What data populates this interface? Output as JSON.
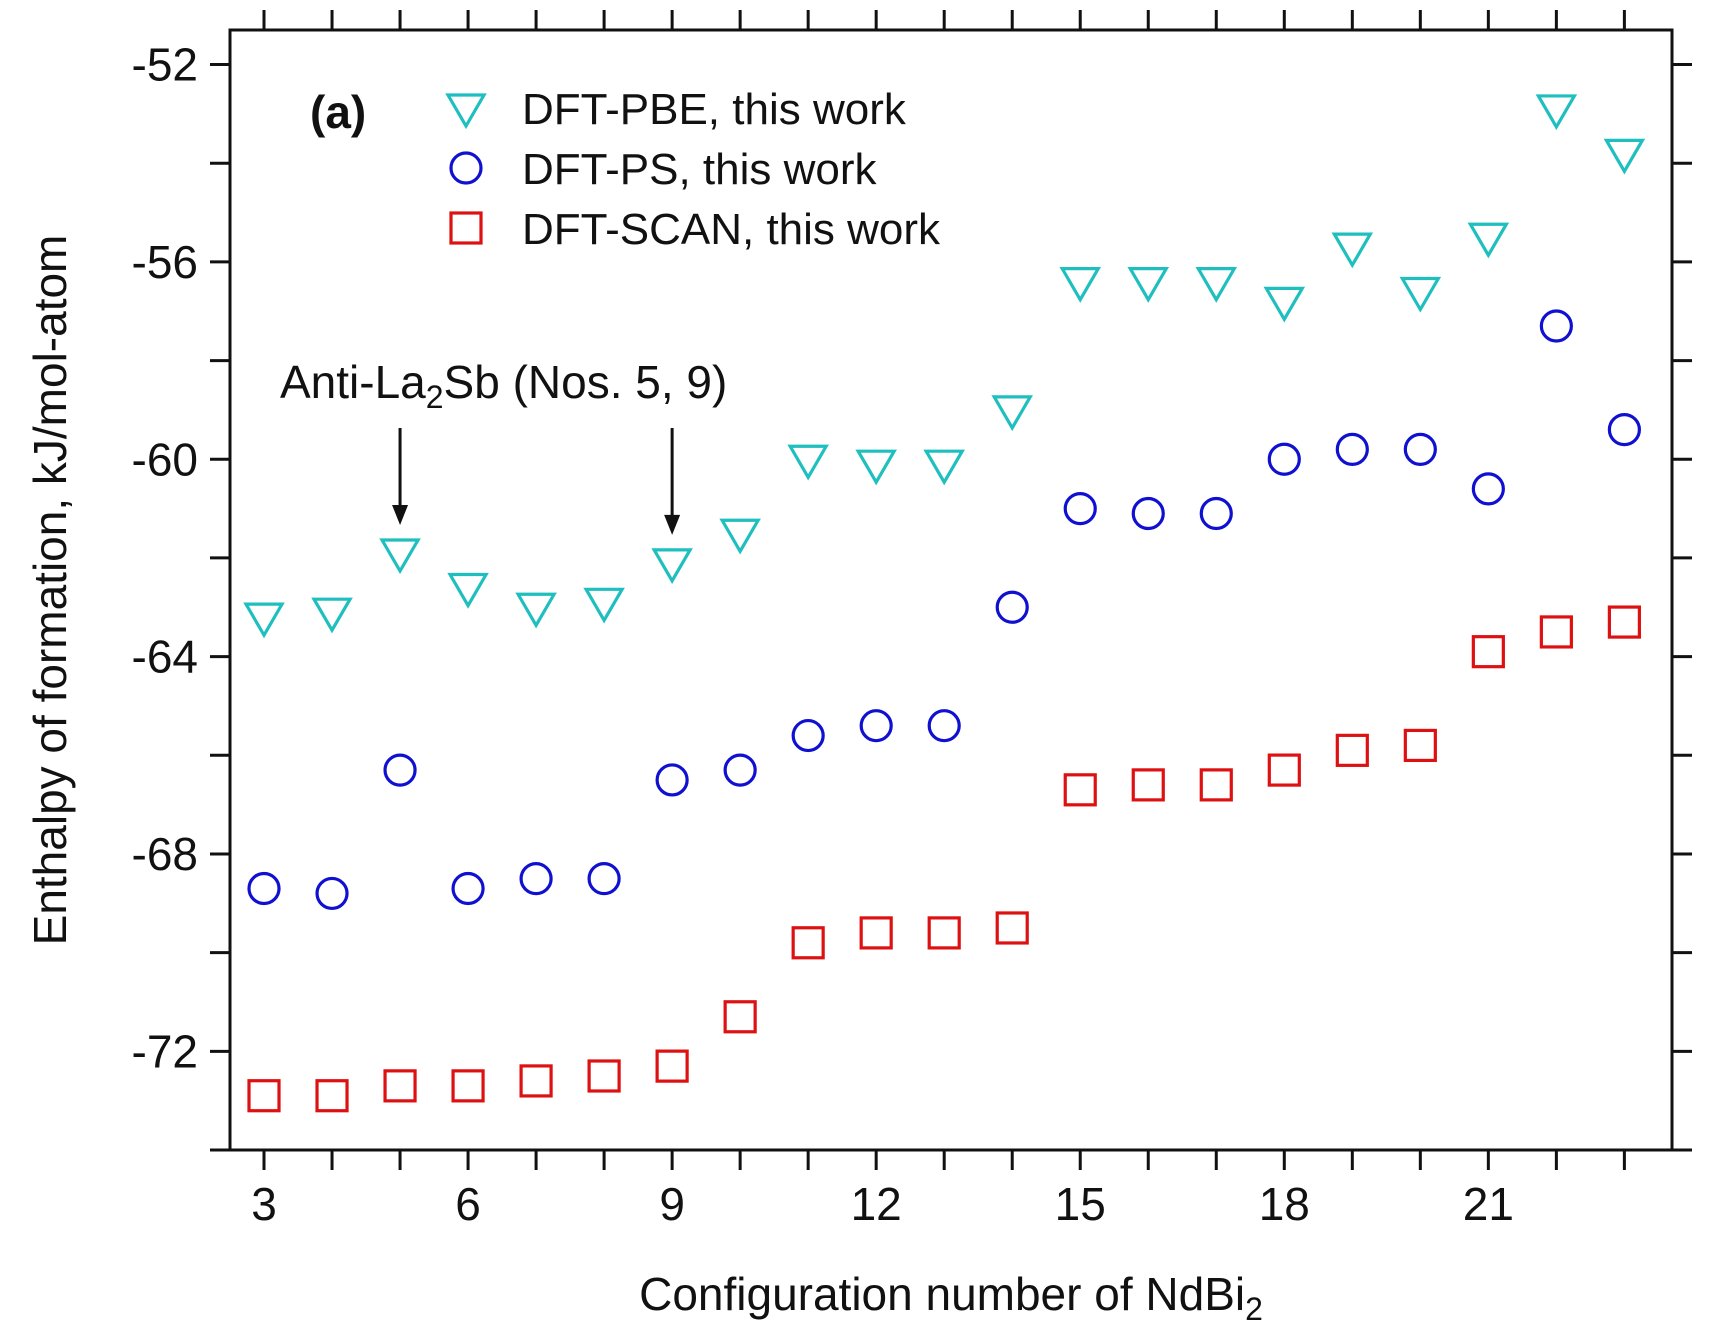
{
  "chart_data": {
    "type": "scatter",
    "panel_label": "(a)",
    "xlabel": "Configuration number of NdBi",
    "xlabel_subscript": "2",
    "ylabel": "Enthalpy of formation, kJ/mol-atom",
    "xlim": [
      2.5,
      23.7
    ],
    "ylim": [
      -74,
      -51.3
    ],
    "x_ticks": [
      3,
      6,
      9,
      12,
      15,
      18,
      21
    ],
    "y_ticks": [
      -72,
      -68,
      -64,
      -60,
      -56,
      -52
    ],
    "grid": false,
    "legend_position": "top-left",
    "series": [
      {
        "name": "DFT-PBE, this work",
        "marker": "triangle-down",
        "color": "#1fbfbf",
        "x": [
          3,
          4,
          5,
          6,
          7,
          8,
          9,
          10,
          11,
          12,
          13,
          14,
          15,
          16,
          17,
          18,
          19,
          20,
          21,
          22,
          23
        ],
        "y": [
          -63.2,
          -63.1,
          -61.9,
          -62.6,
          -63.0,
          -62.9,
          -62.1,
          -61.5,
          -60.0,
          -60.1,
          -60.1,
          -59.0,
          -56.4,
          -56.4,
          -56.4,
          -56.8,
          -55.7,
          -56.6,
          -55.5,
          -52.9,
          -53.8
        ]
      },
      {
        "name": "DFT-PS, this work",
        "marker": "circle",
        "color": "#1010d0",
        "x": [
          3,
          4,
          5,
          6,
          7,
          8,
          9,
          10,
          11,
          12,
          13,
          14,
          15,
          16,
          17,
          18,
          19,
          20,
          21,
          22,
          23
        ],
        "y": [
          -68.7,
          -68.8,
          -66.3,
          -68.7,
          -68.5,
          -68.5,
          -66.5,
          -66.3,
          -65.6,
          -65.4,
          -65.4,
          -63.0,
          -61.0,
          -61.1,
          -61.1,
          -60.0,
          -59.8,
          -59.8,
          -60.6,
          -57.3,
          -59.4
        ]
      },
      {
        "name": "DFT-SCAN, this work",
        "marker": "square",
        "color": "#dd1111",
        "x": [
          3,
          4,
          5,
          6,
          7,
          8,
          9,
          10,
          11,
          12,
          13,
          14,
          15,
          16,
          17,
          18,
          19,
          20,
          21,
          22,
          23
        ],
        "y": [
          -72.9,
          -72.9,
          -72.7,
          -72.7,
          -72.6,
          -72.5,
          -72.3,
          -71.3,
          -69.8,
          -69.6,
          -69.6,
          -69.5,
          -66.7,
          -66.6,
          -66.6,
          -66.3,
          -65.9,
          -65.8,
          -63.9,
          -63.5,
          -63.3
        ]
      }
    ],
    "annotation": {
      "text_before": "Anti-La",
      "text_sub": "2",
      "text_after": "Sb (Nos. 5, 9)",
      "color": "#1010d0",
      "arrow_targets": [
        5,
        9
      ]
    }
  }
}
